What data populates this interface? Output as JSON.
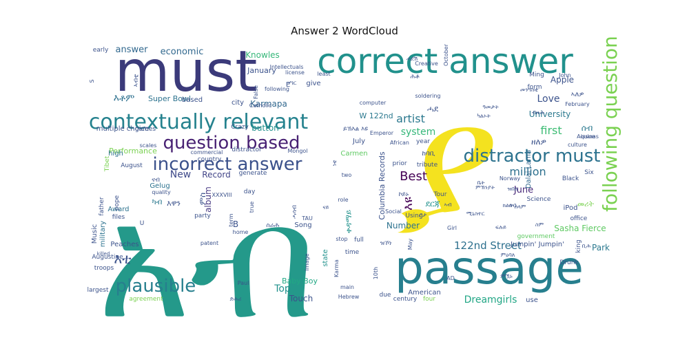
{
  "title": "Answer 2 WordCloud",
  "chart_data": {
    "type": "wordcloud",
    "title": "Answer 2 WordCloud",
    "words": [
      {
        "text": "ያ",
        "weight": 1.0,
        "color": "#f4e21f"
      },
      {
        "text": "አብ",
        "weight": 0.98,
        "color": "#24998a"
      },
      {
        "text": "passage",
        "weight": 0.55,
        "color": "#277f8e"
      },
      {
        "text": "must",
        "weight": 0.5,
        "color": "#3b3a7a"
      },
      {
        "text": "correct answer",
        "weight": 0.4,
        "color": "#21918c"
      },
      {
        "text": "contextually relevant",
        "weight": 0.2,
        "color": "#25828e"
      },
      {
        "text": "following question",
        "weight": 0.2,
        "color": "#7ad151"
      },
      {
        "text": "question based",
        "weight": 0.18,
        "color": "#482173"
      },
      {
        "text": "incorrect answer",
        "weight": 0.18,
        "color": "#3b518b"
      },
      {
        "text": "distractor must",
        "weight": 0.17,
        "color": "#2c728e"
      },
      {
        "text": "plausible",
        "weight": 0.16,
        "color": "#277f8e"
      },
      {
        "text": "Best",
        "weight": 0.12,
        "color": "#440154"
      },
      {
        "text": "artist",
        "weight": 0.11,
        "color": "#2a788e"
      },
      {
        "text": "first",
        "weight": 0.11,
        "color": "#3dbc74"
      },
      {
        "text": "million",
        "weight": 0.11,
        "color": "#2d708e"
      },
      {
        "text": "122nd Street",
        "weight": 0.1,
        "color": "#2d708e"
      },
      {
        "text": "Dreamgirls",
        "weight": 0.09,
        "color": "#21a685"
      },
      {
        "text": "Love",
        "weight": 0.09,
        "color": "#3b528b"
      },
      {
        "text": "New",
        "weight": 0.09,
        "color": "#3e4989"
      },
      {
        "text": "system",
        "weight": 0.08,
        "color": "#35b779"
      },
      {
        "text": "economic",
        "weight": 0.08,
        "color": "#31688e"
      },
      {
        "text": "answer",
        "weight": 0.08,
        "color": "#31688e"
      },
      {
        "text": "Karmapa",
        "weight": 0.07,
        "color": "#31688e"
      },
      {
        "text": "Knowles",
        "weight": 0.07,
        "color": "#35b779"
      },
      {
        "text": "Record",
        "weight": 0.07,
        "color": "#414487"
      },
      {
        "text": "album",
        "weight": 0.07,
        "color": "#453781"
      },
      {
        "text": "button",
        "weight": 0.07,
        "color": "#21918c"
      },
      {
        "text": "June",
        "weight": 0.07,
        "color": "#482878"
      },
      {
        "text": "Park",
        "weight": 0.07,
        "color": "#2a788e"
      },
      {
        "text": "Sasha Fierce",
        "weight": 0.07,
        "color": "#5ec962"
      },
      {
        "text": "Top",
        "weight": 0.07,
        "color": "#21918c"
      },
      {
        "text": "Touch",
        "weight": 0.06,
        "color": "#3b528b"
      },
      {
        "text": "Number",
        "weight": 0.06,
        "color": "#2c728e"
      },
      {
        "text": "Apple",
        "weight": 0.06,
        "color": "#3b528b"
      },
      {
        "text": "University",
        "weight": 0.06,
        "color": "#2a788e"
      },
      {
        "text": "Super Bowl",
        "weight": 0.05,
        "color": "#2c728e"
      },
      {
        "text": "Baby Boy",
        "weight": 0.05,
        "color": "#22a884"
      },
      {
        "text": "Columbia Records",
        "weight": 0.05,
        "color": "#3b528b"
      },
      {
        "text": "W 122nd",
        "weight": 0.05,
        "color": "#2a788e"
      },
      {
        "text": "January",
        "weight": 0.05,
        "color": "#3b528b"
      },
      {
        "text": "multiple choice",
        "weight": 0.04,
        "color": "#3b528b"
      },
      {
        "text": "Performance",
        "weight": 0.05,
        "color": "#7ad151"
      },
      {
        "text": "Dalai Lama",
        "weight": 0.04,
        "color": "#31688e"
      },
      {
        "text": "Jumpin' Jumpin'",
        "weight": 0.04,
        "color": "#3b528b"
      },
      {
        "text": "American",
        "weight": 0.04,
        "color": "#3b528b"
      },
      {
        "text": "Gelug",
        "weight": 0.04,
        "color": "#2c728e"
      },
      {
        "text": "Peaches",
        "weight": 0.04,
        "color": "#3b528b"
      },
      {
        "text": "Music",
        "weight": 0.04,
        "color": "#3b528b"
      },
      {
        "text": "military",
        "weight": 0.04,
        "color": "#2c728e"
      },
      {
        "text": "Award",
        "weight": 0.04,
        "color": "#2c728e"
      },
      {
        "text": "Carmen",
        "weight": 0.04,
        "color": "#5ec962"
      },
      {
        "text": "iPod",
        "weight": 0.04,
        "color": "#3b528b"
      },
      {
        "text": "July",
        "weight": 0.04,
        "color": "#3b528b"
      },
      {
        "text": "Song",
        "weight": 0.04,
        "color": "#3b528b"
      },
      {
        "text": "state",
        "weight": 0.04,
        "color": "#21918c"
      },
      {
        "text": "city",
        "weight": 0.04,
        "color": "#3b528b"
      },
      {
        "text": "based",
        "weight": 0.04,
        "color": "#3b528b"
      },
      {
        "text": "give",
        "weight": 0.04,
        "color": "#3b528b"
      },
      {
        "text": "high",
        "weight": 0.04,
        "color": "#2c728e"
      },
      {
        "text": "August",
        "weight": 0.04,
        "color": "#3b528b"
      },
      {
        "text": "Crazy",
        "weight": 0.04,
        "color": "#3b528b"
      },
      {
        "text": "year",
        "weight": 0.03,
        "color": "#3b528b"
      },
      {
        "text": "office",
        "weight": 0.03,
        "color": "#3b528b"
      },
      {
        "text": "government",
        "weight": 0.03,
        "color": "#5ec962"
      },
      {
        "text": "Science",
        "weight": 0.03,
        "color": "#3b528b"
      },
      {
        "text": "Black",
        "weight": 0.03,
        "color": "#3b528b"
      },
      {
        "text": "Six",
        "weight": 0.03,
        "color": "#3b528b"
      },
      {
        "text": "king",
        "weight": 0.03,
        "color": "#3b528b"
      },
      {
        "text": "use",
        "weight": 0.04,
        "color": "#3b528b"
      },
      {
        "text": "century",
        "weight": 0.03,
        "color": "#3b528b"
      },
      {
        "text": "four",
        "weight": 0.03,
        "color": "#7ad151"
      },
      {
        "text": "due",
        "weight": 0.03,
        "color": "#3b528b"
      },
      {
        "text": "time",
        "weight": 0.03,
        "color": "#3b528b"
      },
      {
        "text": "full",
        "weight": 0.03,
        "color": "#3b528b"
      },
      {
        "text": "day",
        "weight": 0.03,
        "color": "#3b528b"
      },
      {
        "text": "generate",
        "weight": 0.03,
        "color": "#3b528b"
      },
      {
        "text": "country",
        "weight": 0.03,
        "color": "#3b528b"
      },
      {
        "text": "party",
        "weight": 0.03,
        "color": "#3b528b"
      },
      {
        "text": "files",
        "weight": 0.03,
        "color": "#3b528b"
      },
      {
        "text": "pope",
        "weight": 0.03,
        "color": "#3b528b"
      },
      {
        "text": "father",
        "weight": 0.03,
        "color": "#3b528b"
      },
      {
        "text": "troops",
        "weight": 0.03,
        "color": "#3b528b"
      },
      {
        "text": "Augustine",
        "weight": 0.03,
        "color": "#3b528b"
      },
      {
        "text": "largest",
        "weight": 0.03,
        "color": "#3b528b"
      },
      {
        "text": "agreement",
        "weight": 0.03,
        "color": "#7ad151"
      },
      {
        "text": "games",
        "weight": 0.03,
        "color": "#3b528b"
      },
      {
        "text": "Tibet",
        "weight": 0.03,
        "color": "#7ad151"
      },
      {
        "text": "distractor",
        "weight": 0.03,
        "color": "#3b528b"
      },
      {
        "text": "commercial",
        "weight": 0.03,
        "color": "#3b528b"
      },
      {
        "text": "Mongol",
        "weight": 0.03,
        "color": "#3b528b"
      },
      {
        "text": "tribute",
        "weight": 0.03,
        "color": "#3b528b"
      },
      {
        "text": "prior",
        "weight": 0.03,
        "color": "#3b528b"
      },
      {
        "text": "African",
        "weight": 0.03,
        "color": "#3b528b"
      },
      {
        "text": "Emperor",
        "weight": 0.03,
        "color": "#3b528b"
      },
      {
        "text": "computer",
        "weight": 0.03,
        "color": "#3b528b"
      },
      {
        "text": "soldering",
        "weight": 0.03,
        "color": "#3b528b"
      },
      {
        "text": "Creative",
        "weight": 0.03,
        "color": "#3b528b"
      },
      {
        "text": "October",
        "weight": 0.03,
        "color": "#3b528b"
      },
      {
        "text": "Ming",
        "weight": 0.03,
        "color": "#3b528b"
      },
      {
        "text": "form",
        "weight": 0.03,
        "color": "#3b528b"
      },
      {
        "text": "John",
        "weight": 0.03,
        "color": "#3b528b"
      },
      {
        "text": "February",
        "weight": 0.03,
        "color": "#3b528b"
      },
      {
        "text": "Aquinas",
        "weight": 0.03,
        "color": "#3b528b"
      },
      {
        "text": "culture",
        "weight": 0.03,
        "color": "#3b528b"
      },
      {
        "text": "issue",
        "weight": 0.03,
        "color": "#3b528b"
      },
      {
        "text": "Norway",
        "weight": 0.03,
        "color": "#3b528b"
      },
      {
        "text": "Drunk",
        "weight": 0.03,
        "color": "#3b528b"
      },
      {
        "text": "Girl",
        "weight": 0.03,
        "color": "#3b528b"
      },
      {
        "text": "Tour",
        "weight": 0.03,
        "color": "#3b528b"
      },
      {
        "text": "Using",
        "weight": 0.03,
        "color": "#3b528b"
      },
      {
        "text": "Social",
        "weight": 0.03,
        "color": "#3b528b"
      },
      {
        "text": "role",
        "weight": 0.03,
        "color": "#3b528b"
      },
      {
        "text": "two",
        "weight": 0.03,
        "color": "#3b528b"
      },
      {
        "text": "May",
        "weight": 0.03,
        "color": "#3b528b"
      },
      {
        "text": "stop",
        "weight": 0.03,
        "color": "#3b528b"
      },
      {
        "text": "Karma",
        "weight": 0.03,
        "color": "#3b528b"
      },
      {
        "text": "10th",
        "weight": 0.03,
        "color": "#3b528b"
      },
      {
        "text": "main",
        "weight": 0.03,
        "color": "#3b528b"
      },
      {
        "text": "Hebrew",
        "weight": 0.03,
        "color": "#3b528b"
      },
      {
        "text": "AD",
        "weight": 0.03,
        "color": "#3b528b"
      },
      {
        "text": "Paul",
        "weight": 0.03,
        "color": "#3b528b"
      },
      {
        "text": "Image",
        "weight": 0.03,
        "color": "#3b528b"
      },
      {
        "text": "patent",
        "weight": 0.03,
        "color": "#3b528b"
      },
      {
        "text": "home",
        "weight": 0.03,
        "color": "#3b528b"
      },
      {
        "text": "term",
        "weight": 0.03,
        "color": "#3b528b"
      },
      {
        "text": "true",
        "weight": 0.03,
        "color": "#3b528b"
      },
      {
        "text": "TAU",
        "weight": 0.03,
        "color": "#3b528b"
      },
      {
        "text": "quality",
        "weight": 0.03,
        "color": "#3b528b"
      },
      {
        "text": "killed",
        "weight": 0.03,
        "color": "#3b528b"
      },
      {
        "text": "scales",
        "weight": 0.03,
        "color": "#3b528b"
      },
      {
        "text": "early",
        "weight": 0.03,
        "color": "#3b528b"
      },
      {
        "text": "license",
        "weight": 0.03,
        "color": "#3b528b"
      },
      {
        "text": "least",
        "weight": 0.03,
        "color": "#3b528b"
      },
      {
        "text": "following",
        "weight": 0.03,
        "color": "#3b528b"
      },
      {
        "text": "Catholic",
        "weight": 0.03,
        "color": "#3b528b"
      },
      {
        "text": "False",
        "weight": 0.03,
        "color": "#3b528b"
      },
      {
        "text": "Intellectuals",
        "weight": 0.03,
        "color": "#3b528b"
      },
      {
        "text": "XXXVIII",
        "weight": 0.03,
        "color": "#3b528b"
      },
      {
        "text": "B",
        "weight": 0.03,
        "color": "#3b528b"
      },
      {
        "text": "E",
        "weight": 0.03,
        "color": "#3b528b"
      },
      {
        "text": "U",
        "weight": 0.03,
        "color": "#3b528b"
      },
      {
        "text": "S",
        "weight": 0.03,
        "color": "#3b528b"
      },
      {
        "text": "እቶም",
        "weight": 0.06,
        "color": "#2d708e"
      },
      {
        "text": "እቲ",
        "weight": 0.07,
        "color": "#3b528b"
      },
      {
        "text": "እዩ",
        "weight": 0.07,
        "color": "#440154"
      },
      {
        "text": "ዘለዎ",
        "weight": 0.05,
        "color": "#3b528b"
      },
      {
        "text": "ሰብ",
        "weight": 0.05,
        "color": "#2a788e"
      },
      {
        "text": "ደርጃ",
        "weight": 0.05,
        "color": "#21918c"
      },
      {
        "text": "ሓደ",
        "weight": 0.05,
        "color": "#3b528b"
      },
      {
        "text": "ቀዳማይ",
        "weight": 0.05,
        "color": "#21918c"
      },
      {
        "text": "ከባቢ",
        "weight": 0.04,
        "color": "#3b528b"
      },
      {
        "text": "እዋን",
        "weight": 0.04,
        "color": "#3b528b"
      },
      {
        "text": "መሪት",
        "weight": 0.04,
        "color": "#7ad151"
      },
      {
        "text": "ካብ",
        "weight": 0.04,
        "color": "#2a788e"
      },
      {
        "text": "ኣለዎ",
        "weight": 0.04,
        "color": "#3b528b"
      },
      {
        "text": "ምኽንያት",
        "weight": 0.04,
        "color": "#3b528b"
      },
      {
        "text": "ይኽእል እዩ",
        "weight": 0.04,
        "color": "#3b528b"
      },
      {
        "text": "ኮይኑ",
        "weight": 0.04,
        "color": "#3b528b"
      },
      {
        "text": "ዝኾነ",
        "weight": 0.04,
        "color": "#3b528b"
      },
      {
        "text": "ካልኦት",
        "weight": 0.03,
        "color": "#3b528b"
      },
      {
        "text": "ዓመታት",
        "weight": 0.03,
        "color": "#3b528b"
      },
      {
        "text": "ሓደሽ",
        "weight": 0.03,
        "color": "#3b528b"
      },
      {
        "text": "ነቲ",
        "weight": 0.03,
        "color": "#3b528b"
      },
      {
        "text": "ኣብቲ",
        "weight": 0.03,
        "color": "#3b528b"
      },
      {
        "text": "ምዃኑ",
        "weight": 0.03,
        "color": "#3b528b"
      },
      {
        "text": "ምስ",
        "weight": 0.03,
        "color": "#3b528b"
      },
      {
        "text": "ምዕባለ",
        "weight": 0.03,
        "color": "#3b528b"
      },
      {
        "text": "ሓሳብ",
        "weight": 0.03,
        "color": "#3b528b"
      },
      {
        "text": "ናብ",
        "weight": 0.03,
        "color": "#3b528b"
      },
      {
        "text": "ድሕሪ",
        "weight": 0.03,
        "color": "#3b528b"
      },
      {
        "text": "ቢሕ",
        "weight": 0.03,
        "color": "#3b528b"
      },
      {
        "text": "ቤት",
        "weight": 0.03,
        "color": "#3b528b"
      },
      {
        "text": "ናይ",
        "weight": 0.03,
        "color": "#3b528b"
      },
      {
        "text": "ኣብ",
        "weight": 0.03,
        "color": "#3b528b"
      },
      {
        "text": "መንግስቲ",
        "weight": 0.03,
        "color": "#3b528b"
      },
      {
        "text": "ብዙሕ",
        "weight": 0.03,
        "color": "#3b528b"
      },
      {
        "text": "ፍሉይ",
        "weight": 0.03,
        "color": "#3b528b"
      },
      {
        "text": "ሕቶ",
        "weight": 0.03,
        "color": "#3b528b"
      },
      {
        "text": "ስራሕ",
        "weight": 0.03,
        "color": "#3b528b"
      },
      {
        "text": "ቦታ",
        "weight": 0.03,
        "color": "#3b528b"
      },
      {
        "text": "ሃገር",
        "weight": 0.03,
        "color": "#3b528b"
      },
      {
        "text": "ዝበለ",
        "weight": 0.03,
        "color": "#3b528b"
      },
      {
        "text": "ሚኒስተር",
        "weight": 0.03,
        "color": "#3b528b"
      },
      {
        "text": "ክልተ",
        "weight": 0.03,
        "color": "#3b528b"
      },
      {
        "text": "ሰላም",
        "weight": 0.03,
        "color": "#3b528b"
      },
      {
        "text": "ሰብ",
        "weight": 0.03,
        "color": "#3b528b"
      },
      {
        "text": "ስም",
        "weight": 0.03,
        "color": "#3b528b"
      }
    ]
  }
}
